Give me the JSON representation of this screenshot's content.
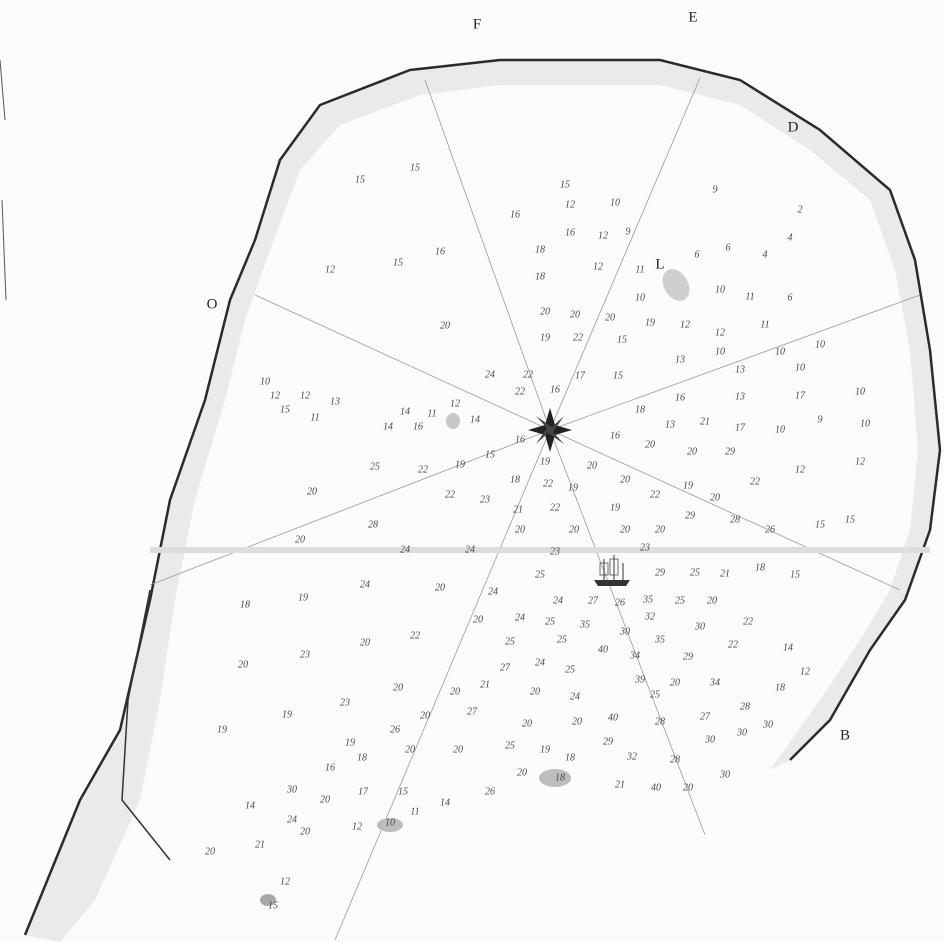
{
  "labels": [
    "F",
    "E",
    "D",
    "L",
    "O",
    "B"
  ],
  "soundings": [
    15,
    15,
    15,
    12,
    10,
    9,
    2,
    16,
    16,
    12,
    9,
    18,
    12,
    11,
    6,
    6,
    4,
    4,
    12,
    15,
    16,
    18,
    10,
    10,
    11,
    6,
    20,
    20,
    20,
    19,
    12,
    12,
    11,
    20,
    19,
    22,
    15,
    10,
    10,
    10,
    24,
    22,
    17,
    15,
    13,
    13,
    10,
    22,
    16,
    10,
    12,
    12,
    13,
    15,
    11,
    14,
    11,
    12,
    14,
    14,
    16,
    18,
    16,
    13,
    17,
    10,
    13,
    21,
    17,
    10,
    9,
    10,
    16,
    15,
    19,
    20,
    16,
    20,
    20,
    29,
    25,
    22,
    19,
    20,
    18,
    22,
    19,
    20,
    22,
    19,
    20,
    22,
    12,
    12,
    22,
    23,
    21,
    22,
    19,
    28,
    20,
    20,
    20,
    20,
    29,
    28,
    26,
    15,
    15,
    20,
    24,
    24,
    23,
    23,
    24,
    20,
    24,
    25,
    29,
    25,
    21,
    18,
    15,
    18,
    19,
    24,
    27,
    26,
    35,
    25,
    20,
    20,
    24,
    25,
    35,
    32,
    30,
    22,
    20,
    22,
    25,
    25,
    30,
    35,
    22,
    14,
    20,
    23,
    40,
    34,
    29,
    27,
    24,
    25,
    39,
    20,
    34,
    20,
    21,
    20,
    25,
    18,
    12,
    23,
    20,
    24,
    19,
    19,
    26,
    20,
    27,
    20,
    20,
    40,
    28,
    27,
    28,
    30,
    30,
    19,
    20,
    20,
    25,
    19,
    18,
    29,
    32,
    28,
    30,
    16,
    18,
    20,
    18,
    30,
    30,
    20,
    17,
    15,
    14,
    26,
    21,
    40,
    20,
    14,
    24,
    20,
    12,
    10,
    11,
    20,
    21,
    12,
    15
  ]
}
